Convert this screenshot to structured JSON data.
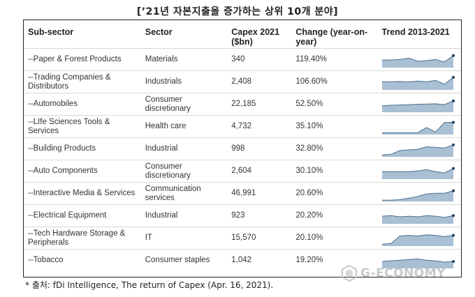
{
  "title": "[’21년 자본지출을 증가하는 상위 10개 분야]",
  "headers": [
    "Sub-sector",
    "Sector",
    "Capex 2021 ($bn)",
    "Change (year-on-year)",
    "Trend 2013-2021"
  ],
  "rows": [
    {
      "subsector": "--Paper & Forest Products",
      "sector": "Materials",
      "capex": "340",
      "change": "119.40%",
      "trend": [
        0.55,
        0.55,
        0.6,
        0.7,
        0.45,
        0.5,
        0.6,
        0.4,
        0.9
      ]
    },
    {
      "subsector": "--Trading Companies & Distributors",
      "sector": "Industrials",
      "capex": "2,408",
      "change": "106.60%",
      "trend": [
        0.6,
        0.6,
        0.62,
        0.58,
        0.65,
        0.6,
        0.7,
        0.4,
        0.95
      ]
    },
    {
      "subsector": "--Automobiles",
      "sector": "Consumer discretionary",
      "capex": "22,185",
      "change": "52.50%",
      "trend": [
        0.45,
        0.5,
        0.52,
        0.55,
        0.58,
        0.6,
        0.62,
        0.55,
        0.85
      ]
    },
    {
      "subsector": "--LIfe Sciences Tools & Services",
      "sector": "Health care",
      "capex": "4,732",
      "change": "35.10%",
      "trend": [
        0.08,
        0.08,
        0.08,
        0.08,
        0.1,
        0.5,
        0.15,
        0.9,
        0.92
      ]
    },
    {
      "subsector": "--Building Products",
      "sector": "Industrial",
      "capex": "998",
      "change": "32.80%",
      "trend": [
        0.1,
        0.15,
        0.45,
        0.5,
        0.55,
        0.75,
        0.7,
        0.65,
        0.9
      ]
    },
    {
      "subsector": "--Auto Components",
      "sector": "Consumer discretionary",
      "capex": "2,604",
      "change": "30.10%",
      "trend": [
        0.55,
        0.55,
        0.55,
        0.55,
        0.6,
        0.7,
        0.55,
        0.45,
        0.8
      ]
    },
    {
      "subsector": "--Interactive Media & Services",
      "sector": "Communication services",
      "capex": "46,991",
      "change": "20.60%",
      "trend": [
        0.05,
        0.05,
        0.1,
        0.2,
        0.35,
        0.55,
        0.6,
        0.6,
        0.8
      ]
    },
    {
      "subsector": "--Electrical Equipment",
      "sector": "Industrial",
      "capex": "923",
      "change": "20.20%",
      "trend": [
        0.55,
        0.6,
        0.5,
        0.55,
        0.5,
        0.6,
        0.55,
        0.45,
        0.6
      ]
    },
    {
      "subsector": "--Tech Hardware Storage & Peripherals",
      "sector": "IT",
      "capex": "15,570",
      "change": "20.10%",
      "trend": [
        0.1,
        0.15,
        0.75,
        0.8,
        0.75,
        0.85,
        0.8,
        0.7,
        0.8
      ]
    },
    {
      "subsector": "--Tobacco",
      "sector": "Consumer staples",
      "capex": "1,042",
      "change": "19.20%",
      "trend": [
        0.5,
        0.55,
        0.6,
        0.65,
        0.7,
        0.6,
        0.55,
        0.45,
        0.5
      ]
    }
  ],
  "footnote": "* 출처: fDi Intelligence, The return of Capex (Apr. 16, 2021).",
  "watermark": "G-ECONOMY",
  "colors": {
    "spark_fill": "#a9bfd3",
    "spark_line": "#4a6f8f",
    "spark_dot": "#1f3f5f"
  }
}
